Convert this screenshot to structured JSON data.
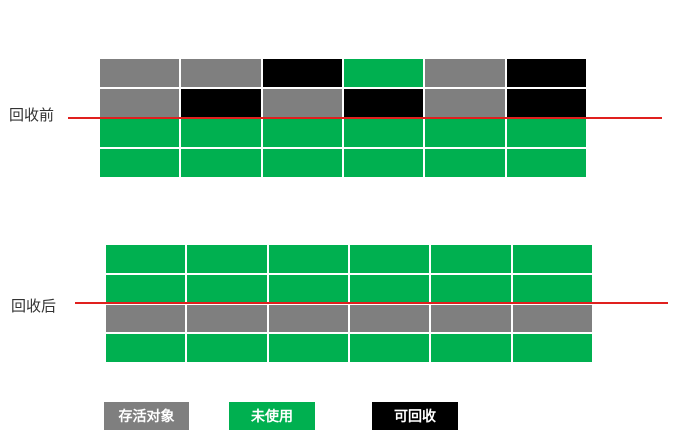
{
  "colors": {
    "live": "#7f7f7f",
    "unused": "#00b050",
    "reclaimable": "#000000",
    "cut_line": "#e0201e"
  },
  "stages": {
    "before": {
      "label": "回收前",
      "rows": [
        [
          "live",
          "live",
          "reclaimable",
          "unused",
          "live",
          "reclaimable"
        ],
        [
          "live",
          "reclaimable",
          "live",
          "reclaimable",
          "live",
          "reclaimable"
        ],
        [
          "unused",
          "unused",
          "unused",
          "unused",
          "unused",
          "unused"
        ],
        [
          "unused",
          "unused",
          "unused",
          "unused",
          "unused",
          "unused"
        ]
      ]
    },
    "after": {
      "label": "回收后",
      "rows": [
        [
          "unused",
          "unused",
          "unused",
          "unused",
          "unused",
          "unused"
        ],
        [
          "unused",
          "unused",
          "unused",
          "unused",
          "unused",
          "unused"
        ],
        [
          "live",
          "live",
          "live",
          "live",
          "live",
          "live"
        ],
        [
          "unused",
          "unused",
          "unused",
          "unused",
          "unused",
          "unused"
        ]
      ]
    }
  },
  "legend": {
    "live": "存活对象",
    "unused": "未使用",
    "reclaimable": "可回收"
  }
}
